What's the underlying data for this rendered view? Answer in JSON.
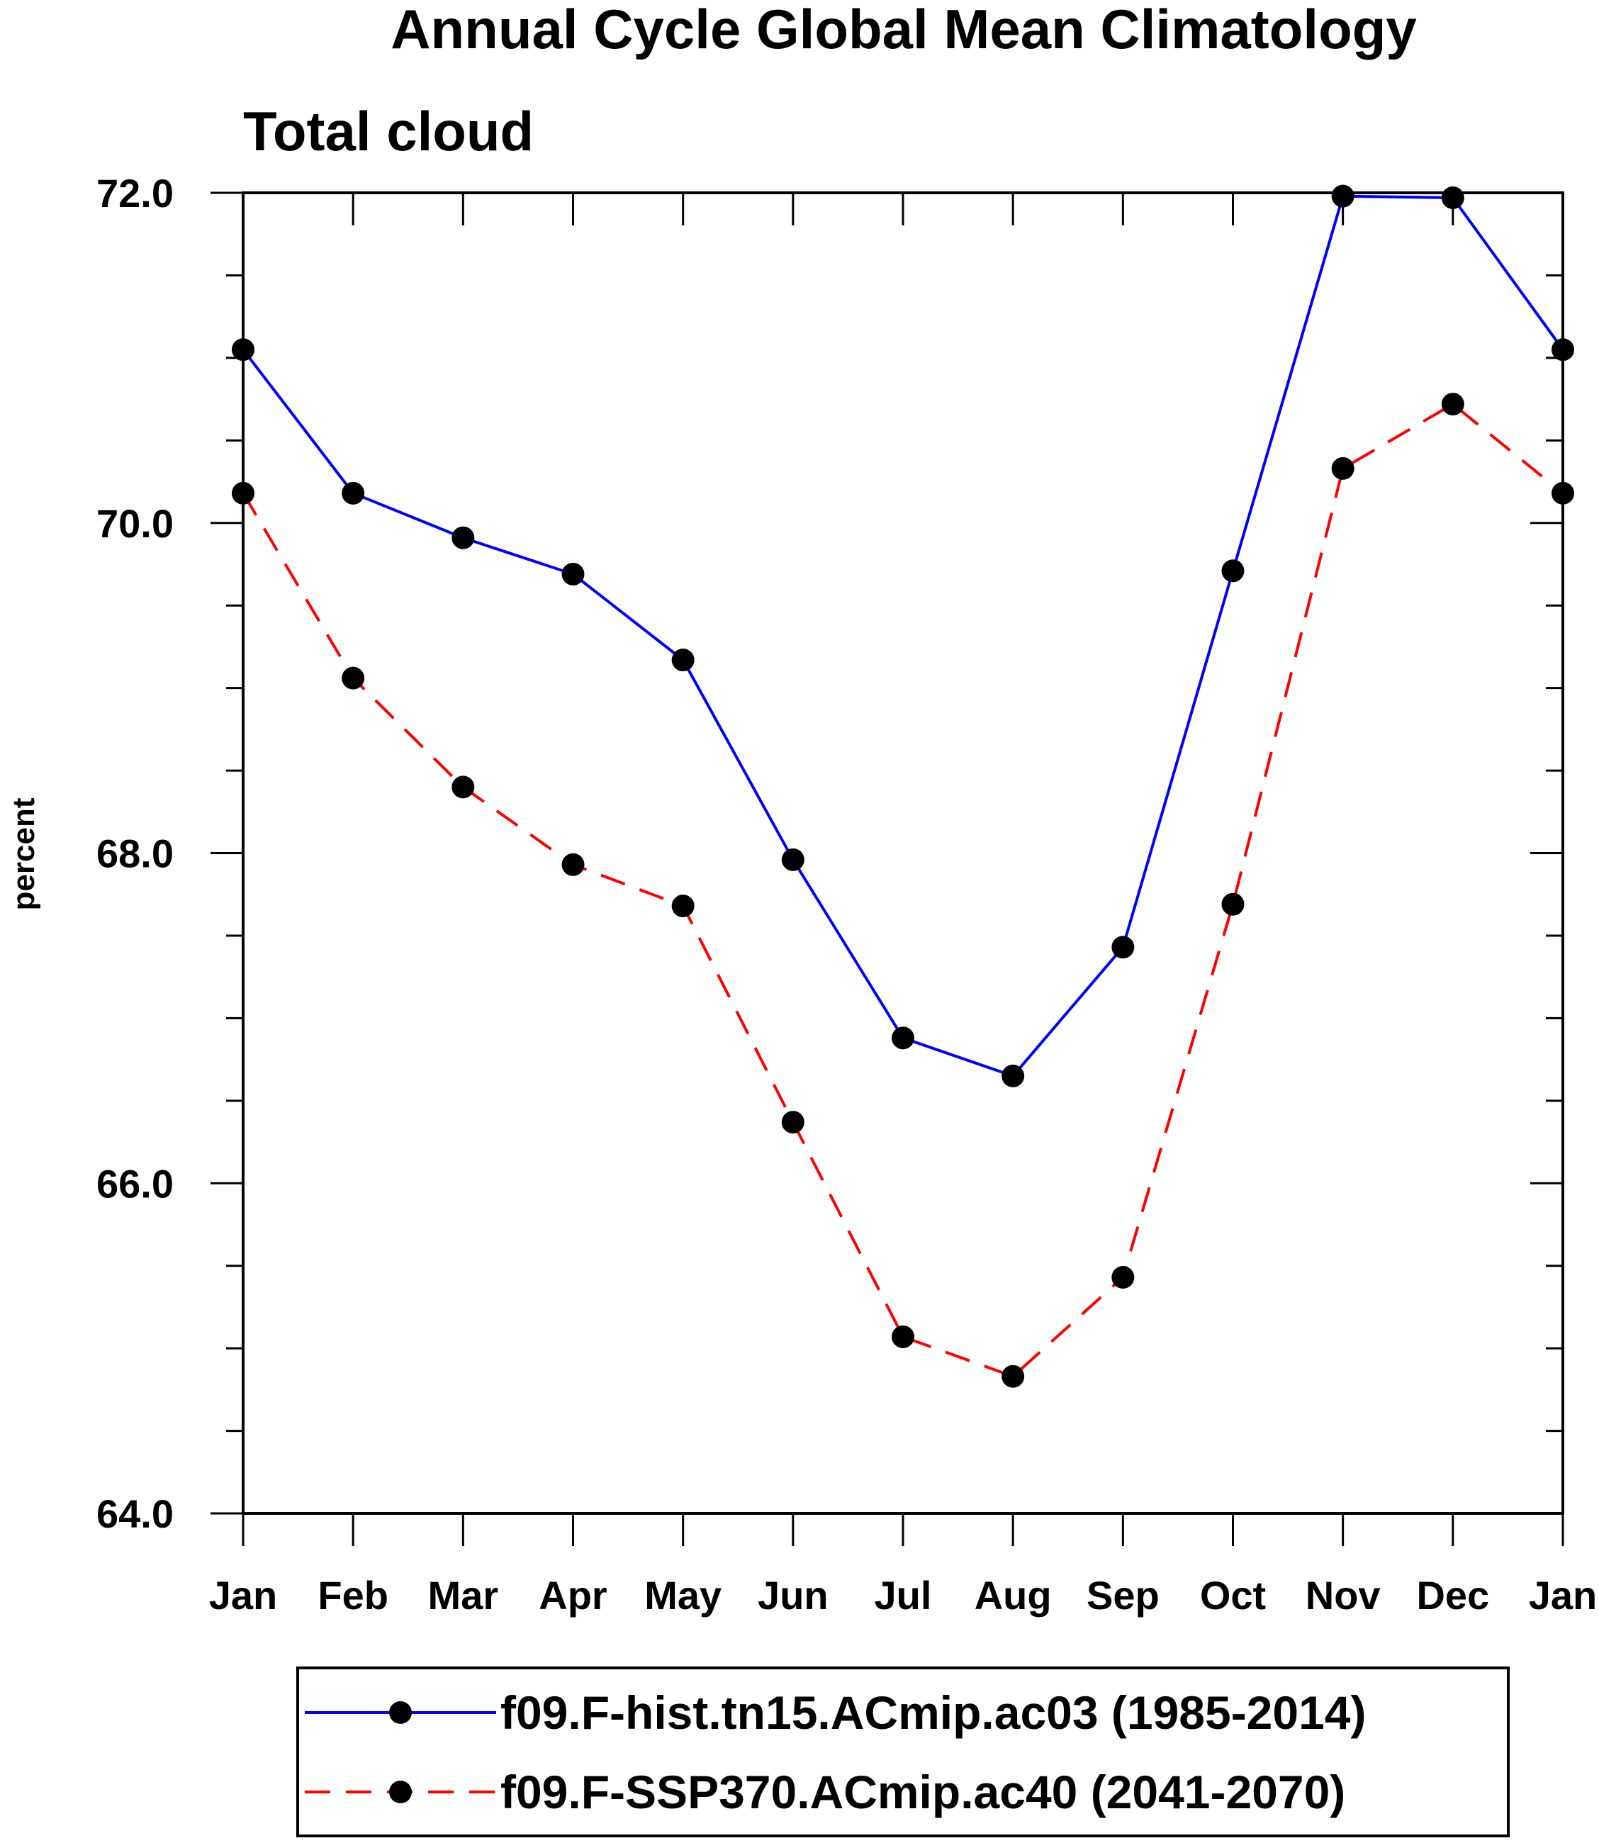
{
  "chart_data": {
    "type": "line",
    "title": "Annual Cycle Global Mean Climatology",
    "subtitle": "Total cloud",
    "xlabel": "",
    "ylabel": "percent",
    "categories": [
      "Jan",
      "Feb",
      "Mar",
      "Apr",
      "May",
      "Jun",
      "Jul",
      "Aug",
      "Sep",
      "Oct",
      "Nov",
      "Dec",
      "Jan"
    ],
    "ylim": [
      64.0,
      72.0
    ],
    "yticks": [
      "64.0",
      "66.0",
      "68.0",
      "70.0",
      "72.0"
    ],
    "grid": false,
    "legend_position": "bottom",
    "series": [
      {
        "name": "f09.F-hist.tn15.ACmip.ac03 (1985-2014)",
        "color": "#0000ff",
        "dash": "solid",
        "marker": "filled-circle",
        "values": [
          71.05,
          70.18,
          69.91,
          69.69,
          69.17,
          67.96,
          66.88,
          66.65,
          67.43,
          69.71,
          71.98,
          71.97,
          71.05
        ]
      },
      {
        "name": "f09.F-SSP370.ACmip.ac40 (2041-2070)",
        "color": "#ff0000",
        "dash": "dashed",
        "marker": "filled-circle",
        "values": [
          70.18,
          69.06,
          68.4,
          67.93,
          67.68,
          66.37,
          65.07,
          64.83,
          65.43,
          67.69,
          70.33,
          70.72,
          70.18
        ]
      }
    ]
  }
}
